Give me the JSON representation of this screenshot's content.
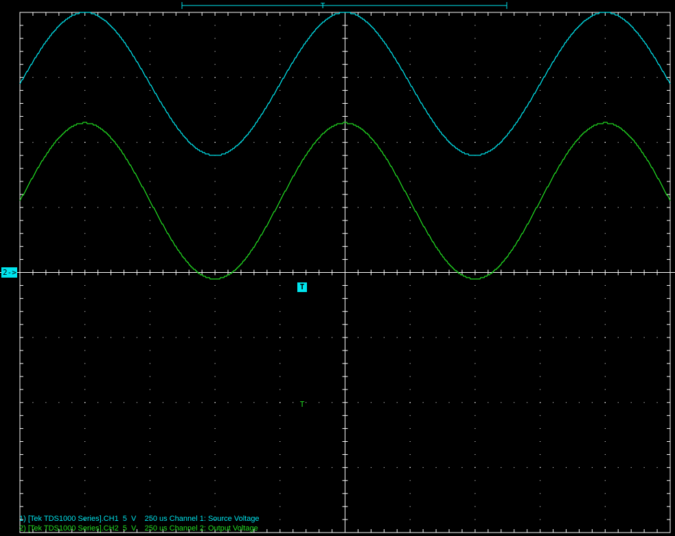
{
  "window": {
    "top_bracket_marker": "T"
  },
  "channel_marker": {
    "label": "2->"
  },
  "trigger_flag": {
    "label": "T"
  },
  "legend": {
    "line1": "1) [Tek TDS1000 Series].CH1  5  V    250 us Channel 1: Source Voltage",
    "line2": "2) [Tek TDS1000 Series].CH2  5  V    250 us Channel 2: Output Voltage"
  },
  "colors": {
    "background": "#000000",
    "grid": "#ffffff",
    "ch1": "#00e5ee",
    "ch2": "#22dd22"
  },
  "chart_data": {
    "type": "line",
    "title": "",
    "xlabel": "",
    "ylabel": "",
    "grid": true,
    "x_unit_per_div": "250 us",
    "y_unit_per_div": "5 V",
    "x_divisions": 10,
    "y_divisions": 8,
    "series": [
      {
        "name": "Channel 1: Source Voltage",
        "color": "#00e5ee",
        "amplitude_div": 1.1,
        "offset_div": 2.9,
        "period_div": 4.0,
        "phase_peak_div": 1.0
      },
      {
        "name": "Channel 2: Output Voltage",
        "color": "#22dd22",
        "amplitude_div": 1.2,
        "offset_div": 1.1,
        "period_div": 4.0,
        "phase_peak_div": 1.0
      }
    ]
  }
}
